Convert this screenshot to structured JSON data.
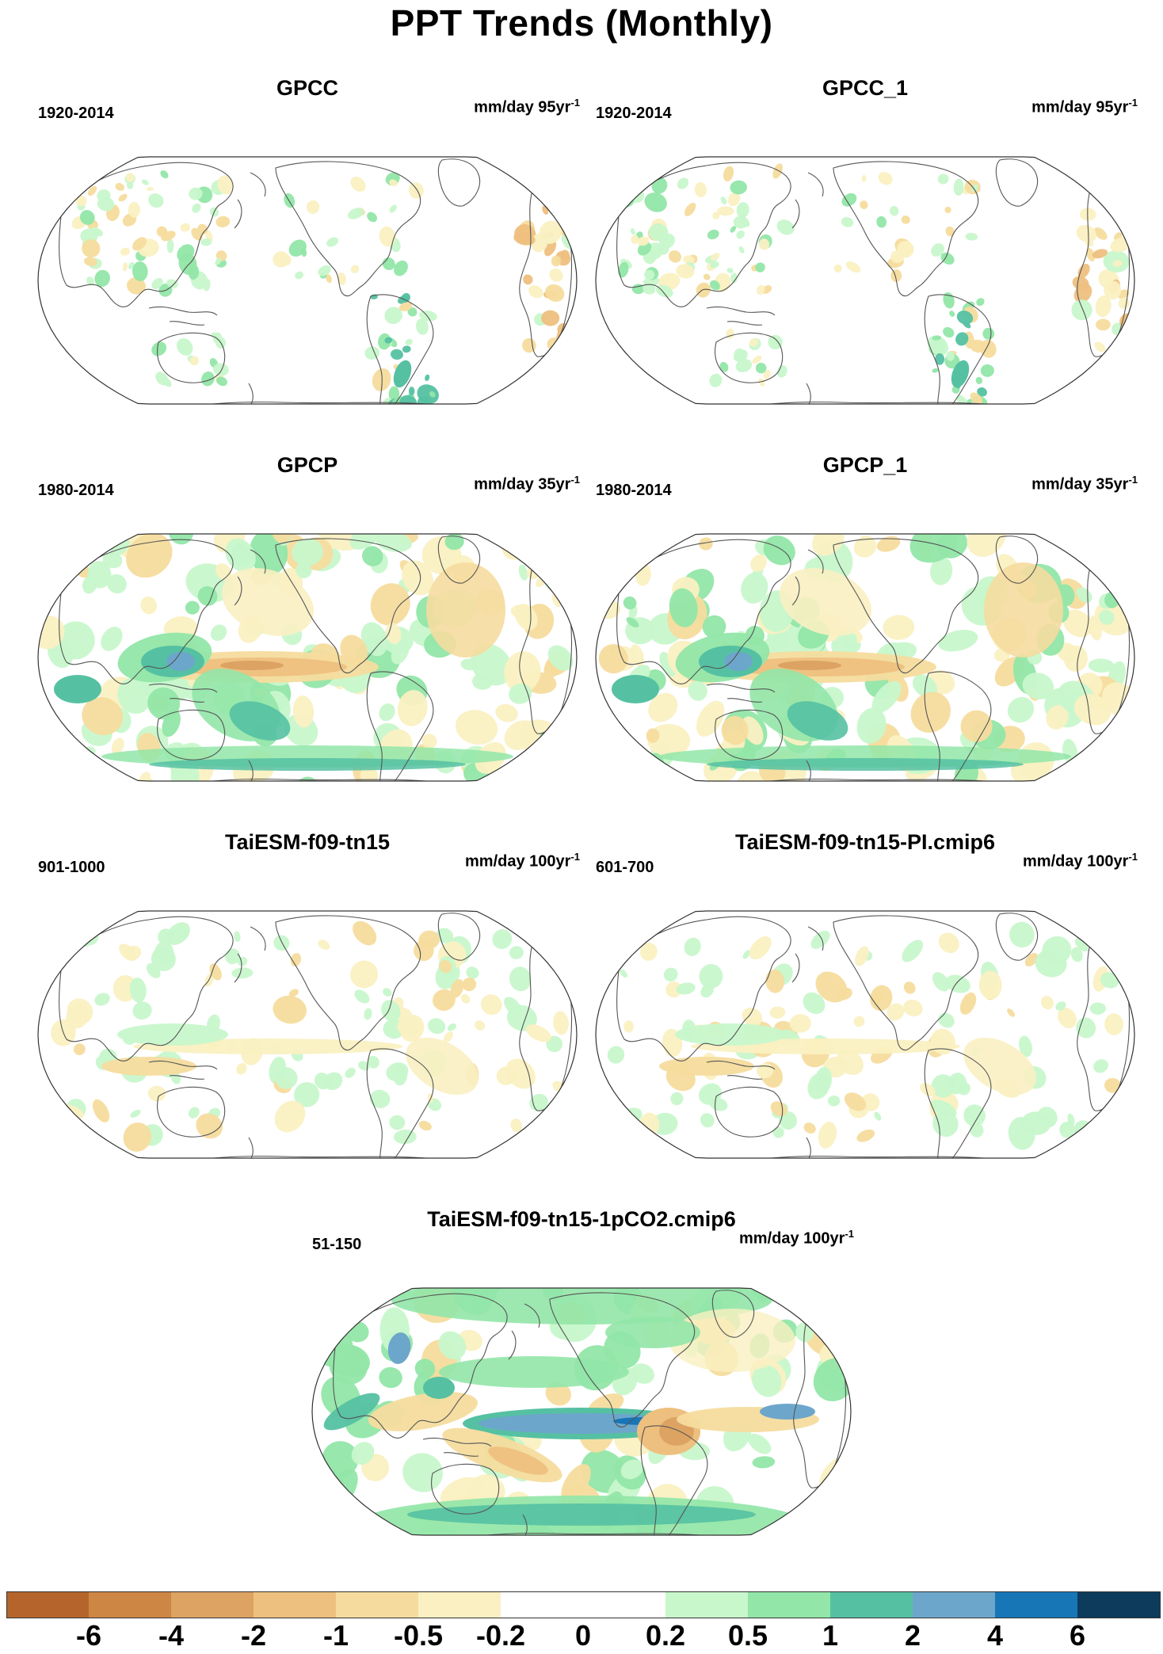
{
  "title": "PPT Trends (Monthly)",
  "panels": [
    {
      "id": "gpcc",
      "title": "GPCC",
      "period": "1920-2014",
      "units": "mm/day 95yr",
      "units_sup": "-1",
      "pattern": "sparse-land"
    },
    {
      "id": "gpcc1",
      "title": "GPCC_1",
      "period": "1920-2014",
      "units": "mm/day 95yr",
      "units_sup": "-1",
      "pattern": "sparse-land"
    },
    {
      "id": "gpcp",
      "title": "GPCP",
      "period": "1980-2014",
      "units": "mm/day 35yr",
      "units_sup": "-1",
      "pattern": "la-nina-trend"
    },
    {
      "id": "gpcp1",
      "title": "GPCP_1",
      "period": "1980-2014",
      "units": "mm/day 35yr",
      "units_sup": "-1",
      "pattern": "la-nina-trend"
    },
    {
      "id": "taiesm",
      "title": "TaiESM-f09-tn15",
      "period": "901-1000",
      "units": "mm/day 100yr",
      "units_sup": "-1",
      "pattern": "weak-noise"
    },
    {
      "id": "taiesm_pi",
      "title": "TaiESM-f09-tn15-PI.cmip6",
      "period": "601-700",
      "units": "mm/day 100yr",
      "units_sup": "-1",
      "pattern": "weak-noise"
    },
    {
      "id": "taiesm_co2",
      "title": "TaiESM-f09-tn15-1pCO2.cmip6",
      "period": "51-150",
      "units": "mm/day 100yr",
      "units_sup": "-1",
      "pattern": "warming"
    }
  ],
  "colorbar": {
    "labels": [
      "-6",
      "-4",
      "-2",
      "-1",
      "-0.5",
      "-0.2",
      "0",
      "0.2",
      "0.5",
      "1",
      "2",
      "4",
      "6"
    ],
    "colors": [
      "#b5652c",
      "#cd8644",
      "#dca363",
      "#eec07f",
      "#f5dc9e",
      "#faf0c2",
      "#ffffff",
      "#ffffff",
      "#c8f7cc",
      "#92e6a8",
      "#55c1a2",
      "#6da6cb",
      "#1776b6",
      "#0c3b5c"
    ]
  },
  "palette": {
    "d6": "#b5652c",
    "d4": "#cd8644",
    "d2": "#dca363",
    "d1": "#eec07f",
    "d05": "#f5dc9e",
    "d02": "#faf0c2",
    "w02": "#c8f7cc",
    "w05": "#92e6a8",
    "w1": "#55c1a2",
    "w2": "#6da6cb",
    "w4": "#1776b6",
    "w6": "#0c3b5c",
    "coast": "#555555"
  }
}
